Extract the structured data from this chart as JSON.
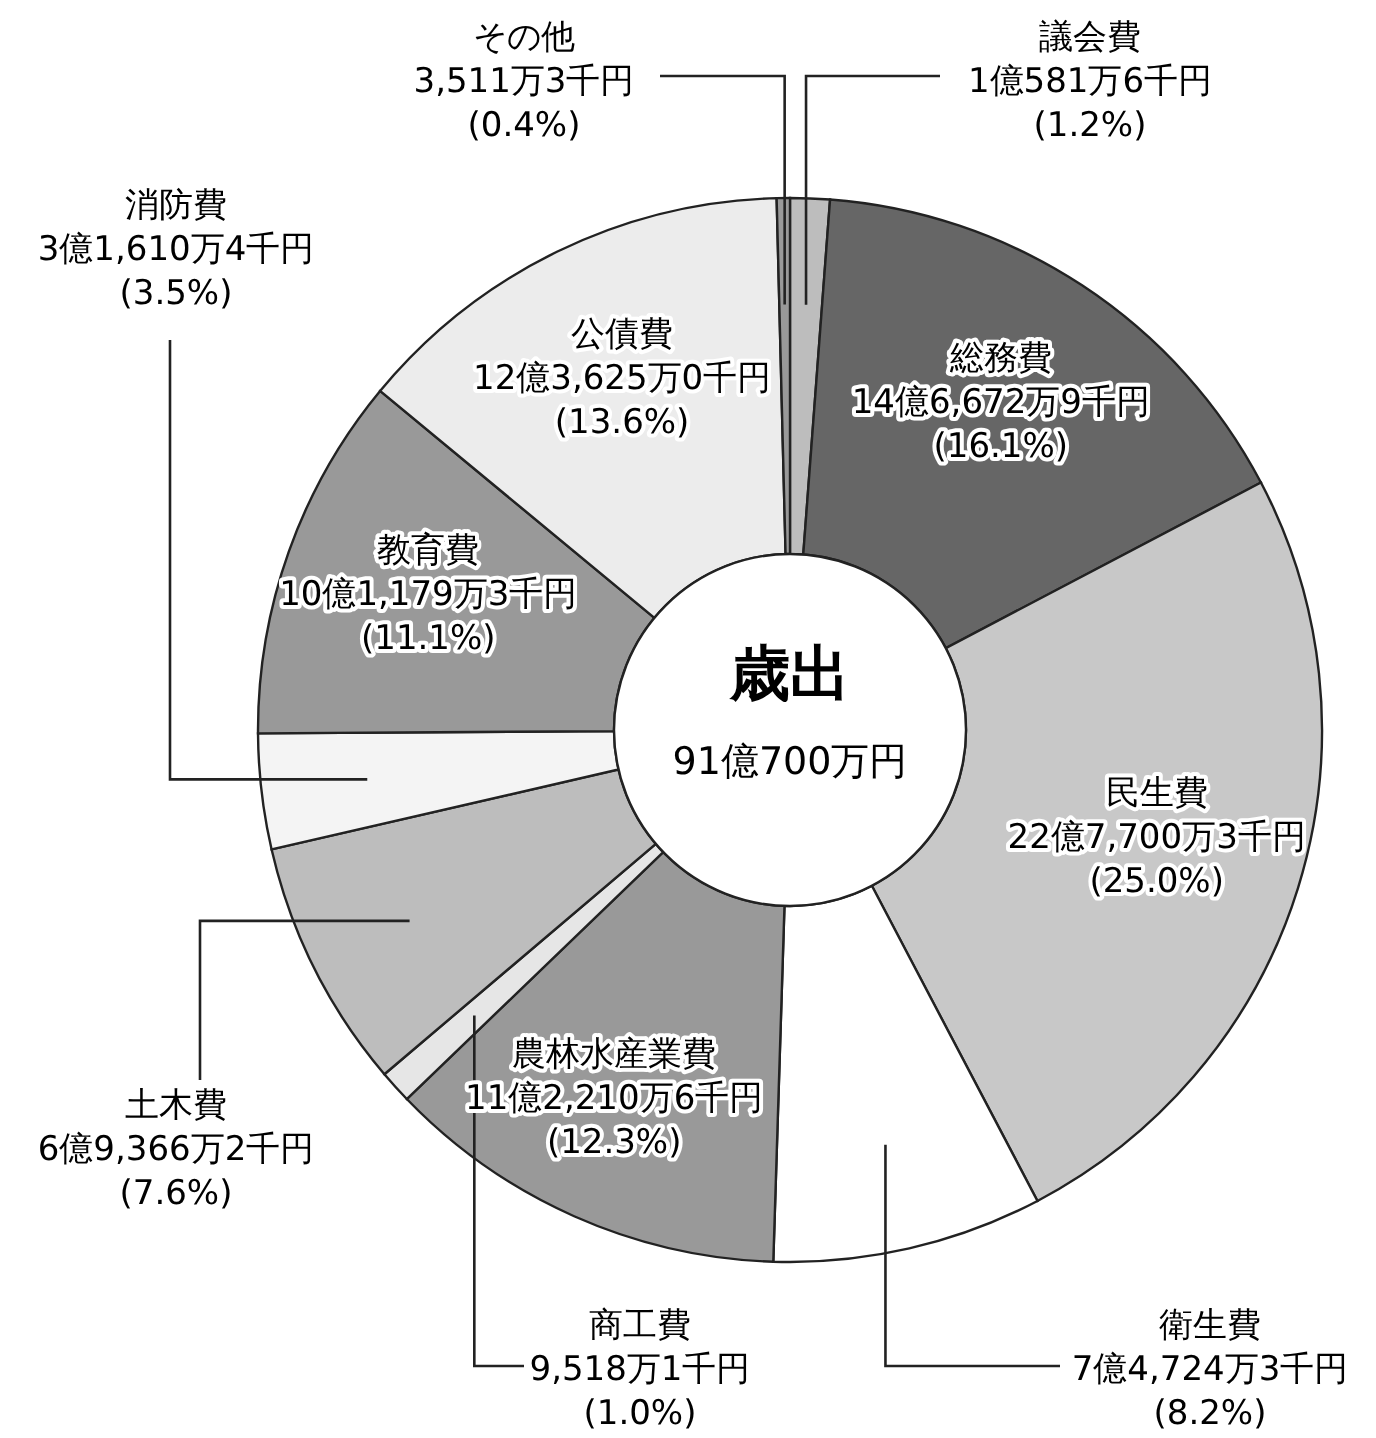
{
  "chart_data": {
    "type": "donut",
    "title": "歳出",
    "subtitle": "91億700万円",
    "categories": [
      "議会費",
      "総務費",
      "民生費",
      "衛生費",
      "農林水産業費",
      "商工費",
      "土木費",
      "消防費",
      "教育費",
      "公債費",
      "その他"
    ],
    "values": [
      1.2,
      16.1,
      25.0,
      8.2,
      12.3,
      1.0,
      7.6,
      3.5,
      11.1,
      13.6,
      0.4
    ],
    "colors": [
      "#bdbdbd",
      "#666666",
      "#c8c8c8",
      "#ffffff",
      "#999999",
      "#e6e6e6",
      "#bdbdbd",
      "#f4f4f4",
      "#999999",
      "#ececec",
      "#999999"
    ],
    "value_labels": [
      "1億581万6千円\n(1.2%)",
      "14億6,672万9千円\n(16.1%)",
      "22億7,700万3千円\n(25.0%)",
      "7億4,724万3千円\n(8.2%)",
      "11億2,210万6千円\n(12.3%)",
      "9,518万1千円\n(1.0%)",
      "6億9,366万2千円\n(7.6%)",
      "3億1,610万4千円\n(3.5%)",
      "10億1,179万3千円\n(11.1%)",
      "12億3,625万0千円\n(13.6%)",
      "3,511万3千円\n(0.4%)"
    ]
  }
}
